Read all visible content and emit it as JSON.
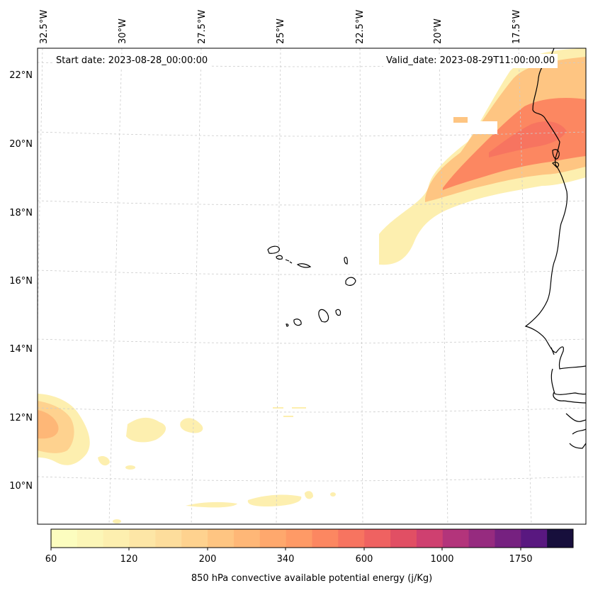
{
  "map": {
    "start_date": "Start date: 2023-08-28_00:00:00",
    "valid_date": "Valid_date: 2023-08-29T11:00:00.00",
    "lon_labels": [
      "32.5°W",
      "30°W",
      "27.5°W",
      "25°W",
      "22.5°W",
      "20°W",
      "17.5°W"
    ],
    "lat_labels": [
      "22°N",
      "20°N",
      "18°N",
      "16°N",
      "14°N",
      "12°N",
      "10°N"
    ],
    "region": "Cape Verde Islands and West African coast (Senegal, Mauritania)",
    "colors": {
      "coast": "#000000",
      "grid": "#cccccc"
    }
  },
  "colorbar": {
    "label": "850 hPa convective available potential energy (j/Kg)",
    "ticks": [
      "60",
      "120",
      "200",
      "340",
      "600",
      "1000",
      "1750"
    ],
    "colors": [
      "#fcfdbf",
      "#fcf6b7",
      "#fdefaf",
      "#fde6a6",
      "#fddd9c",
      "#fed28f",
      "#fec582",
      "#feb777",
      "#fea86d",
      "#fe9a66",
      "#fc8761",
      "#f77460",
      "#ef6261",
      "#e14f64",
      "#cf4070",
      "#b3347b",
      "#962b7f",
      "#762180",
      "#591880",
      "#170f3c"
    ]
  }
}
